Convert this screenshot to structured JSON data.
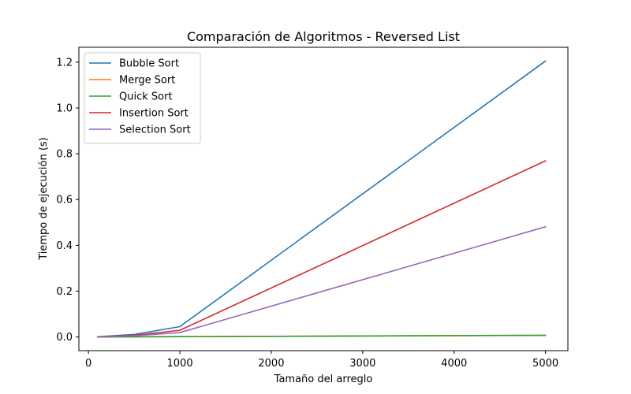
{
  "chart_data": {
    "type": "line",
    "title": "Comparación de Algoritmos - Reversed List",
    "xlabel": "Tamaño del arreglo",
    "ylabel": "Tiempo de ejecución (s)",
    "xlim": [
      -105,
      5245
    ],
    "ylim": [
      -0.06,
      1.265
    ],
    "xticks": [
      0,
      1000,
      2000,
      3000,
      4000,
      5000
    ],
    "xtick_labels": [
      "0",
      "1000",
      "2000",
      "3000",
      "4000",
      "5000"
    ],
    "yticks": [
      0.0,
      0.2,
      0.4,
      0.6,
      0.8,
      1.0,
      1.2
    ],
    "ytick_labels": [
      "0.0",
      "0.2",
      "0.4",
      "0.6",
      "0.8",
      "1.0",
      "1.2"
    ],
    "grid": false,
    "legend_position": "upper-left",
    "x": [
      100,
      500,
      1000,
      5000
    ],
    "series": [
      {
        "name": "Bubble Sort",
        "color": "#1f77b4",
        "values": [
          0.001,
          0.011,
          0.045,
          1.205
        ]
      },
      {
        "name": "Merge Sort",
        "color": "#ff7f0e",
        "values": [
          0.0001,
          0.0006,
          0.0012,
          0.007
        ]
      },
      {
        "name": "Quick Sort",
        "color": "#2ca02c",
        "values": [
          0.0001,
          0.0006,
          0.0012,
          0.007
        ]
      },
      {
        "name": "Insertion Sort",
        "color": "#d62728",
        "values": [
          0.0007,
          0.007,
          0.029,
          0.769
        ]
      },
      {
        "name": "Selection Sort",
        "color": "#9467bd",
        "values": [
          0.0004,
          0.005,
          0.019,
          0.481
        ]
      }
    ]
  }
}
